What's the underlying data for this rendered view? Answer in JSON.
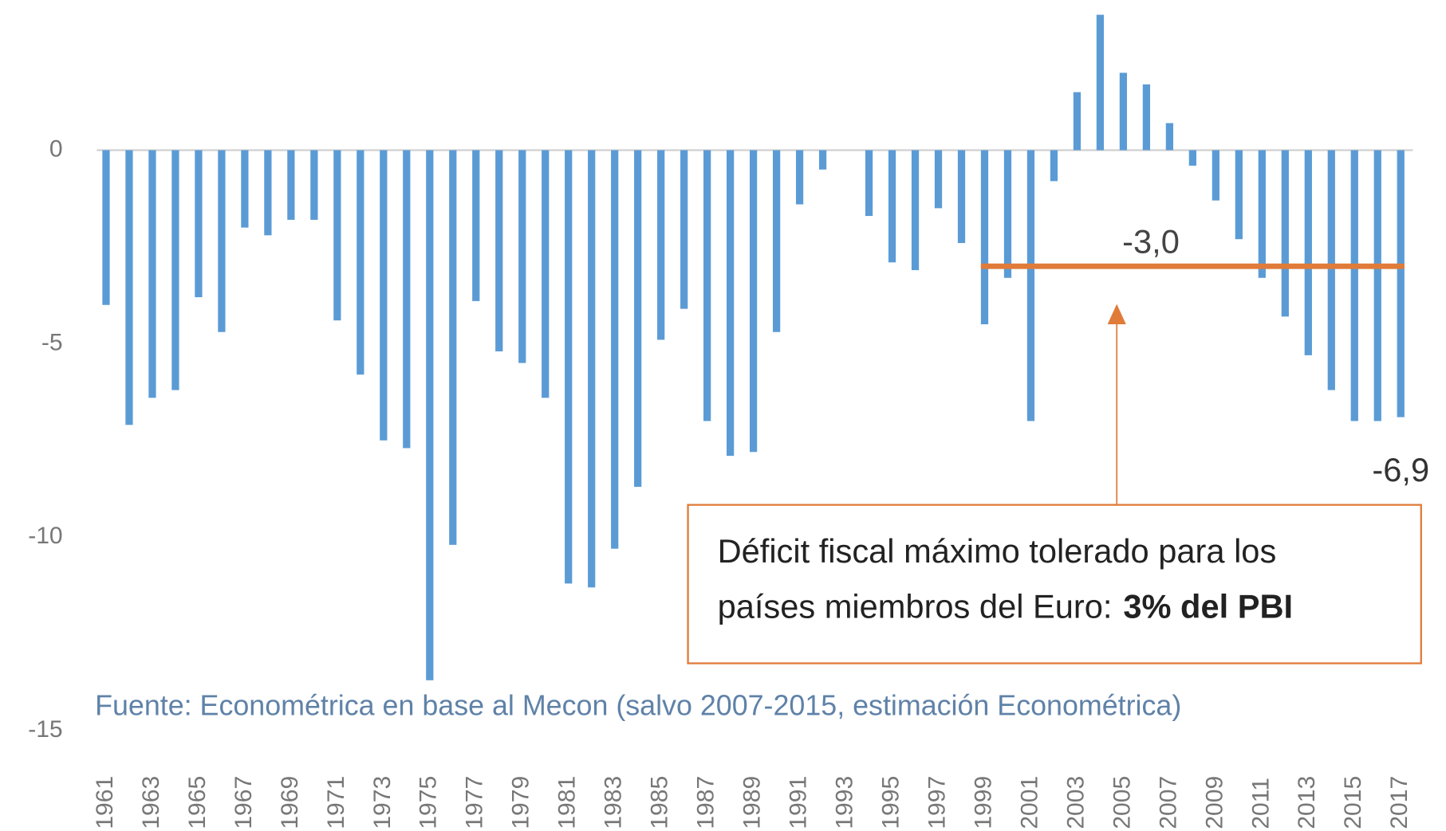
{
  "chart_data": {
    "type": "bar",
    "categories": [
      "1961",
      null,
      "1963",
      null,
      "1965",
      null,
      "1967",
      null,
      "1969",
      null,
      "1971",
      null,
      "1973",
      null,
      "1975",
      null,
      "1977",
      null,
      "1979",
      null,
      "1981",
      null,
      "1983",
      null,
      "1985",
      null,
      "1987",
      null,
      "1989",
      null,
      "1991",
      null,
      "1993",
      null,
      "1995",
      null,
      "1997",
      null,
      "1999",
      null,
      "2001",
      null,
      "2003",
      null,
      "2005",
      null,
      "2007",
      null,
      "2009",
      null,
      "2011",
      null,
      "2013",
      null,
      "2015",
      null,
      "2017"
    ],
    "values": [
      -4.0,
      -7.1,
      -6.4,
      -6.2,
      -3.8,
      -4.7,
      -2.0,
      -2.2,
      -1.8,
      -1.8,
      -4.4,
      -5.8,
      -7.5,
      -7.7,
      -13.7,
      -10.2,
      -3.9,
      -5.2,
      -5.5,
      -6.4,
      -11.2,
      -11.3,
      -10.3,
      -8.7,
      -4.9,
      -4.1,
      -7.0,
      -7.9,
      -7.8,
      -4.7,
      -1.4,
      -0.5,
      0,
      -1.7,
      -2.9,
      -3.1,
      -1.5,
      -2.4,
      -4.5,
      -3.3,
      -7.0,
      -0.8,
      1.5,
      3.5,
      2.0,
      1.7,
      0.7,
      -0.4,
      -1.3,
      -2.3,
      -3.3,
      -4.3,
      -5.3,
      -6.2,
      -7.0,
      -7.0,
      -6.9
    ],
    "value_labels": [
      null,
      null,
      null,
      null,
      null,
      null,
      null,
      null,
      null,
      null,
      null,
      null,
      null,
      null,
      null,
      null,
      null,
      null,
      null,
      null,
      null,
      null,
      null,
      null,
      null,
      null,
      null,
      null,
      null,
      null,
      null,
      null,
      null,
      null,
      null,
      null,
      null,
      null,
      null,
      null,
      null,
      null,
      null,
      null,
      null,
      null,
      null,
      null,
      null,
      null,
      null,
      null,
      null,
      null,
      null,
      null,
      "-6,9"
    ],
    "color": "#5b9bd5",
    "ylim": [
      -15,
      3.6
    ],
    "yticks": [
      0,
      -5,
      -10,
      -15
    ],
    "grid": false,
    "threshold": {
      "value": -3,
      "label": "-3,0",
      "from": "1999",
      "to": "2017",
      "color": "#e07b39"
    },
    "note": {
      "lines": [
        "Déficit fiscal máximo tolerado para los",
        "países miembros del Euro:"
      ],
      "bold": "3% del PBI"
    },
    "source": "Fuente: Econométrica en base al Mecon (salvo 2007-2015, estimación Econométrica)"
  }
}
